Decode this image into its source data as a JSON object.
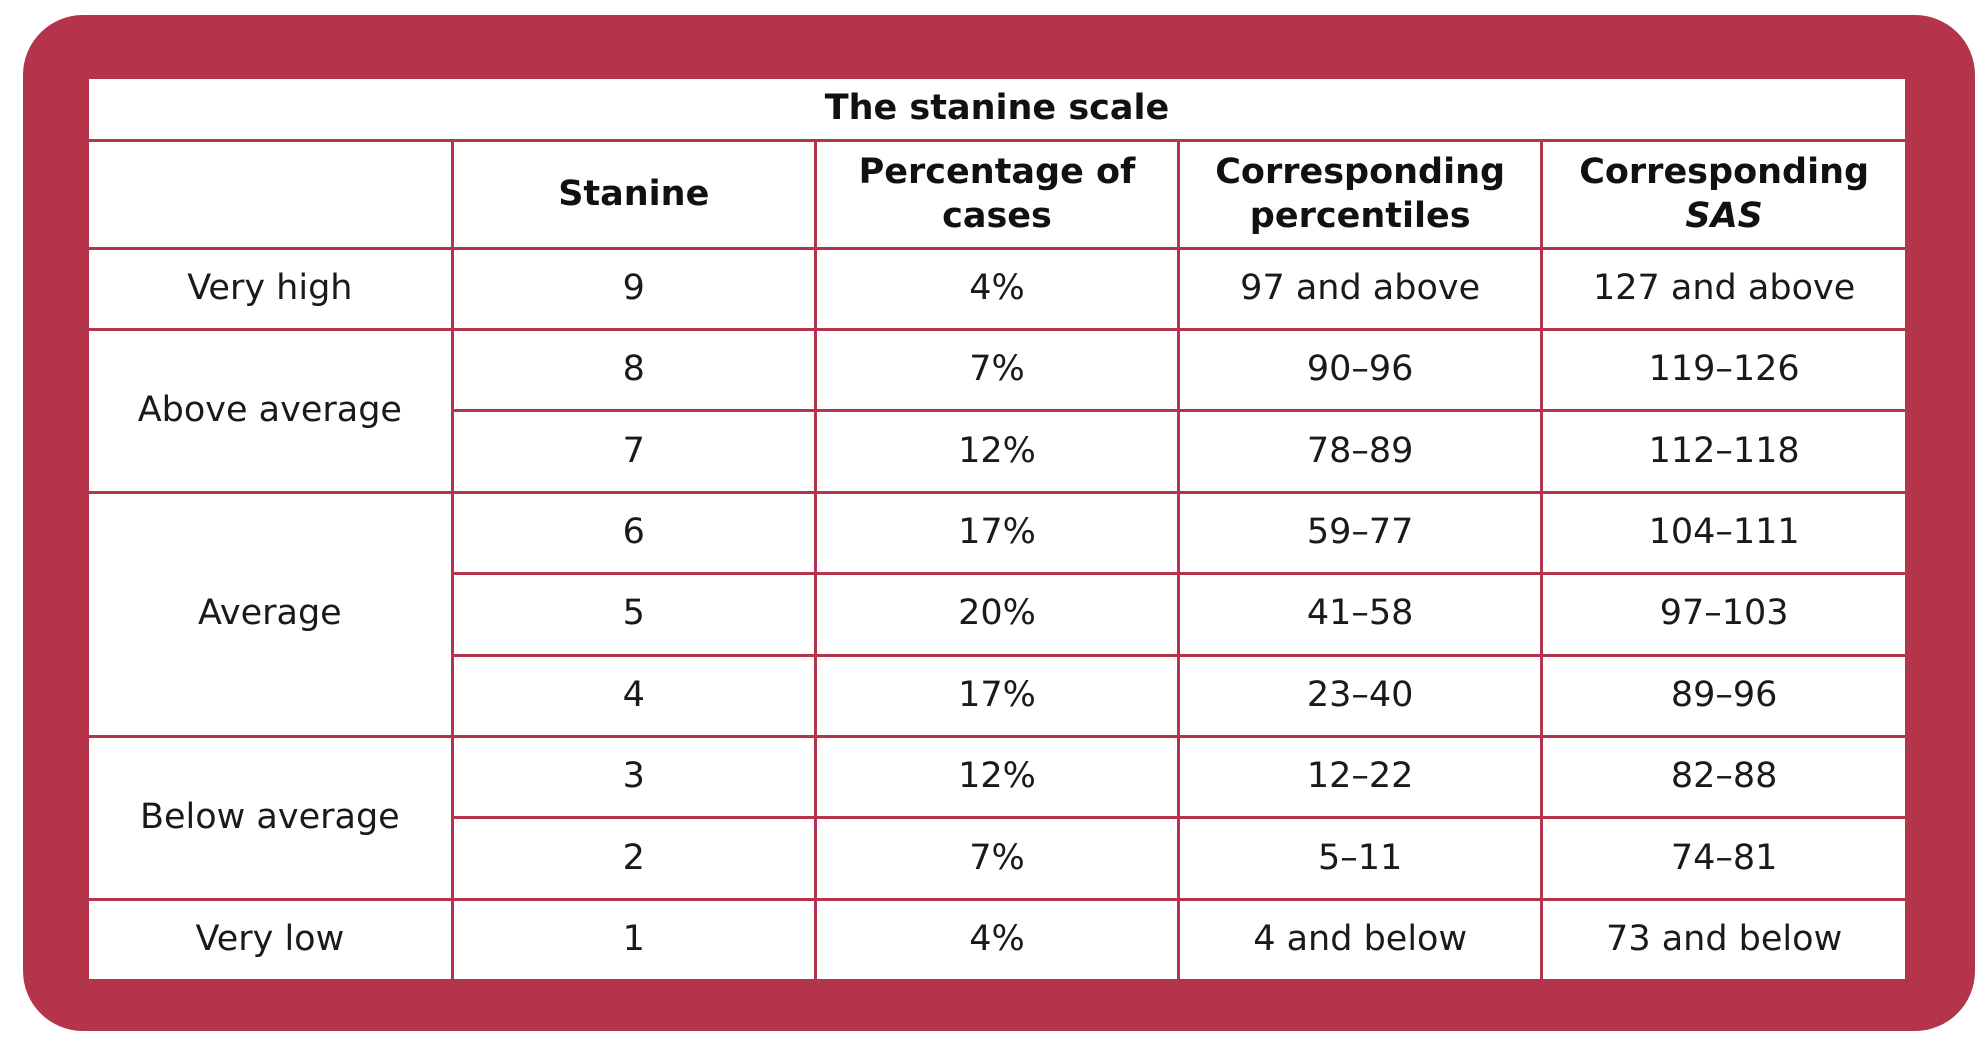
{
  "table": {
    "title": "The stanine scale",
    "headers": {
      "stanine": "Stanine",
      "percentage_line1": "Percentage of",
      "percentage_line2": "cases",
      "percentiles_line1": "Corresponding",
      "percentiles_line2": "percentiles",
      "sas_line1": "Corresponding",
      "sas_line2": "SAS"
    },
    "groups": {
      "very_high": "Very high",
      "above_average": "Above average",
      "average": "Average",
      "below_average": "Below average",
      "very_low": "Very low"
    },
    "rows": [
      {
        "stanine": "9",
        "percentage": "4%",
        "percentiles": "97 and above",
        "sas": "127 and above"
      },
      {
        "stanine": "8",
        "percentage": "7%",
        "percentiles": "90–96",
        "sas": "119–126"
      },
      {
        "stanine": "7",
        "percentage": "12%",
        "percentiles": "78–89",
        "sas": "112–118"
      },
      {
        "stanine": "6",
        "percentage": "17%",
        "percentiles": "59–77",
        "sas": "104–111"
      },
      {
        "stanine": "5",
        "percentage": "20%",
        "percentiles": "41–58",
        "sas": "97–103"
      },
      {
        "stanine": "4",
        "percentage": "17%",
        "percentiles": "23–40",
        "sas": "89–96"
      },
      {
        "stanine": "3",
        "percentage": "12%",
        "percentiles": "12–22",
        "sas": "82–88"
      },
      {
        "stanine": "2",
        "percentage": "7%",
        "percentiles": "5–11",
        "sas": "74–81"
      },
      {
        "stanine": "1",
        "percentage": "4%",
        "percentiles": "4 and below",
        "sas": "73 and below"
      }
    ]
  },
  "colors": {
    "frame": "#b3344b",
    "text": "#1a1a1a",
    "background": "#ffffff"
  }
}
